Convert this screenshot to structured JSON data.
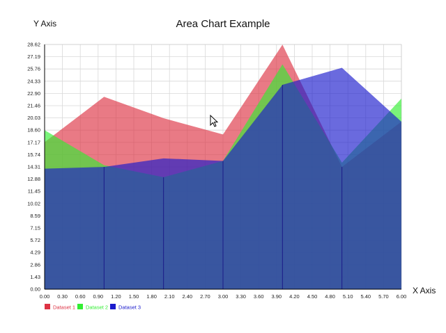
{
  "chart_data": {
    "type": "area",
    "title": "Area Chart Example",
    "xlabel": "X Axis",
    "ylabel": "Y Axis",
    "x": [
      0,
      1,
      2,
      3,
      4,
      5,
      6
    ],
    "xlim": [
      0,
      6
    ],
    "ylim": [
      0,
      28.62
    ],
    "x_ticks": [
      "0.00",
      "0.30",
      "0.60",
      "0.90",
      "1.20",
      "1.50",
      "1.80",
      "2.10",
      "2.40",
      "2.70",
      "3.00",
      "3.30",
      "3.60",
      "3.90",
      "4.20",
      "4.50",
      "4.80",
      "5.10",
      "5.40",
      "5.70",
      "6.00"
    ],
    "y_ticks": [
      "0.00",
      "1.43",
      "2.86",
      "4.29",
      "5.72",
      "7.15",
      "8.59",
      "10.02",
      "11.45",
      "12.88",
      "14.31",
      "15.74",
      "17.17",
      "18.60",
      "20.03",
      "21.46",
      "22.90",
      "24.33",
      "25.76",
      "27.19",
      "28.62"
    ],
    "grid": true,
    "legend_position": "bottom-left",
    "series": [
      {
        "name": "Dataset 1",
        "color": "#dd3344",
        "values": [
          17.2,
          22.5,
          20.0,
          18.1,
          28.6,
          14.3,
          19.6
        ]
      },
      {
        "name": "Dataset 2",
        "color": "#33ee33",
        "values": [
          18.6,
          14.5,
          13.1,
          15.0,
          26.3,
          14.8,
          22.3
        ]
      },
      {
        "name": "Dataset 3",
        "color": "#1a1acc",
        "values": [
          14.1,
          14.3,
          15.3,
          15.0,
          23.9,
          25.9,
          19.6
        ]
      }
    ]
  }
}
